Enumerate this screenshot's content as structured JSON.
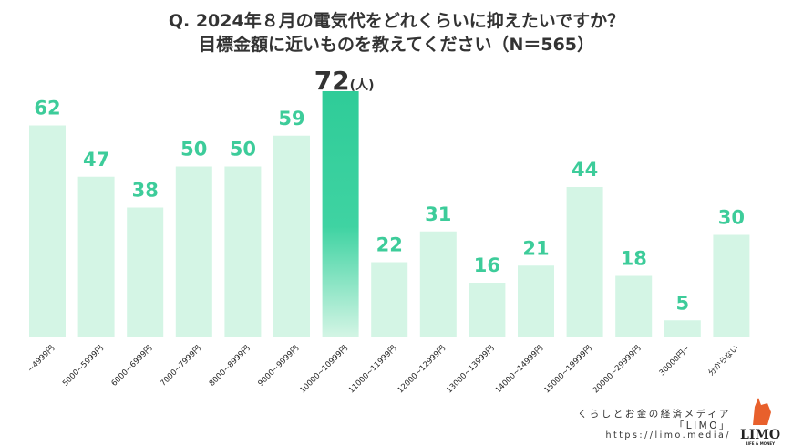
{
  "chart_data": {
    "type": "bar",
    "title": "Q. 2024年８月の電気代をどれくらいに抑えたいですか？",
    "subtitle": "目標金額に近いものを教えてください（N＝565）",
    "categories": [
      "~4999円",
      "5000~5999円",
      "6000~6999円",
      "7000~7999円",
      "8000~8999円",
      "9000~9999円",
      "10000~10999円",
      "11000~11999円",
      "12000~12999円",
      "13000~13999円",
      "14000~14999円",
      "15000~19999円",
      "20000~29999円",
      "30000円~",
      "分からない"
    ],
    "values": [
      62,
      47,
      38,
      50,
      50,
      59,
      72,
      22,
      31,
      16,
      21,
      44,
      18,
      5,
      30
    ],
    "highlight_index": 6,
    "unit_label": "(人)",
    "ylim": [
      0,
      72
    ],
    "grid": false,
    "colors": {
      "bar": "#d4f5e5",
      "highlight": "#33cf9c",
      "label": "#3dcc9a",
      "highlight_label": "#333333"
    }
  },
  "footer": {
    "tagline": "くらしとお金の経済メディア",
    "brand": "「LIMO」",
    "url": "https://limo.media/",
    "logo_text": "LIMO",
    "logo_sub": "LIFE & MONEY"
  }
}
